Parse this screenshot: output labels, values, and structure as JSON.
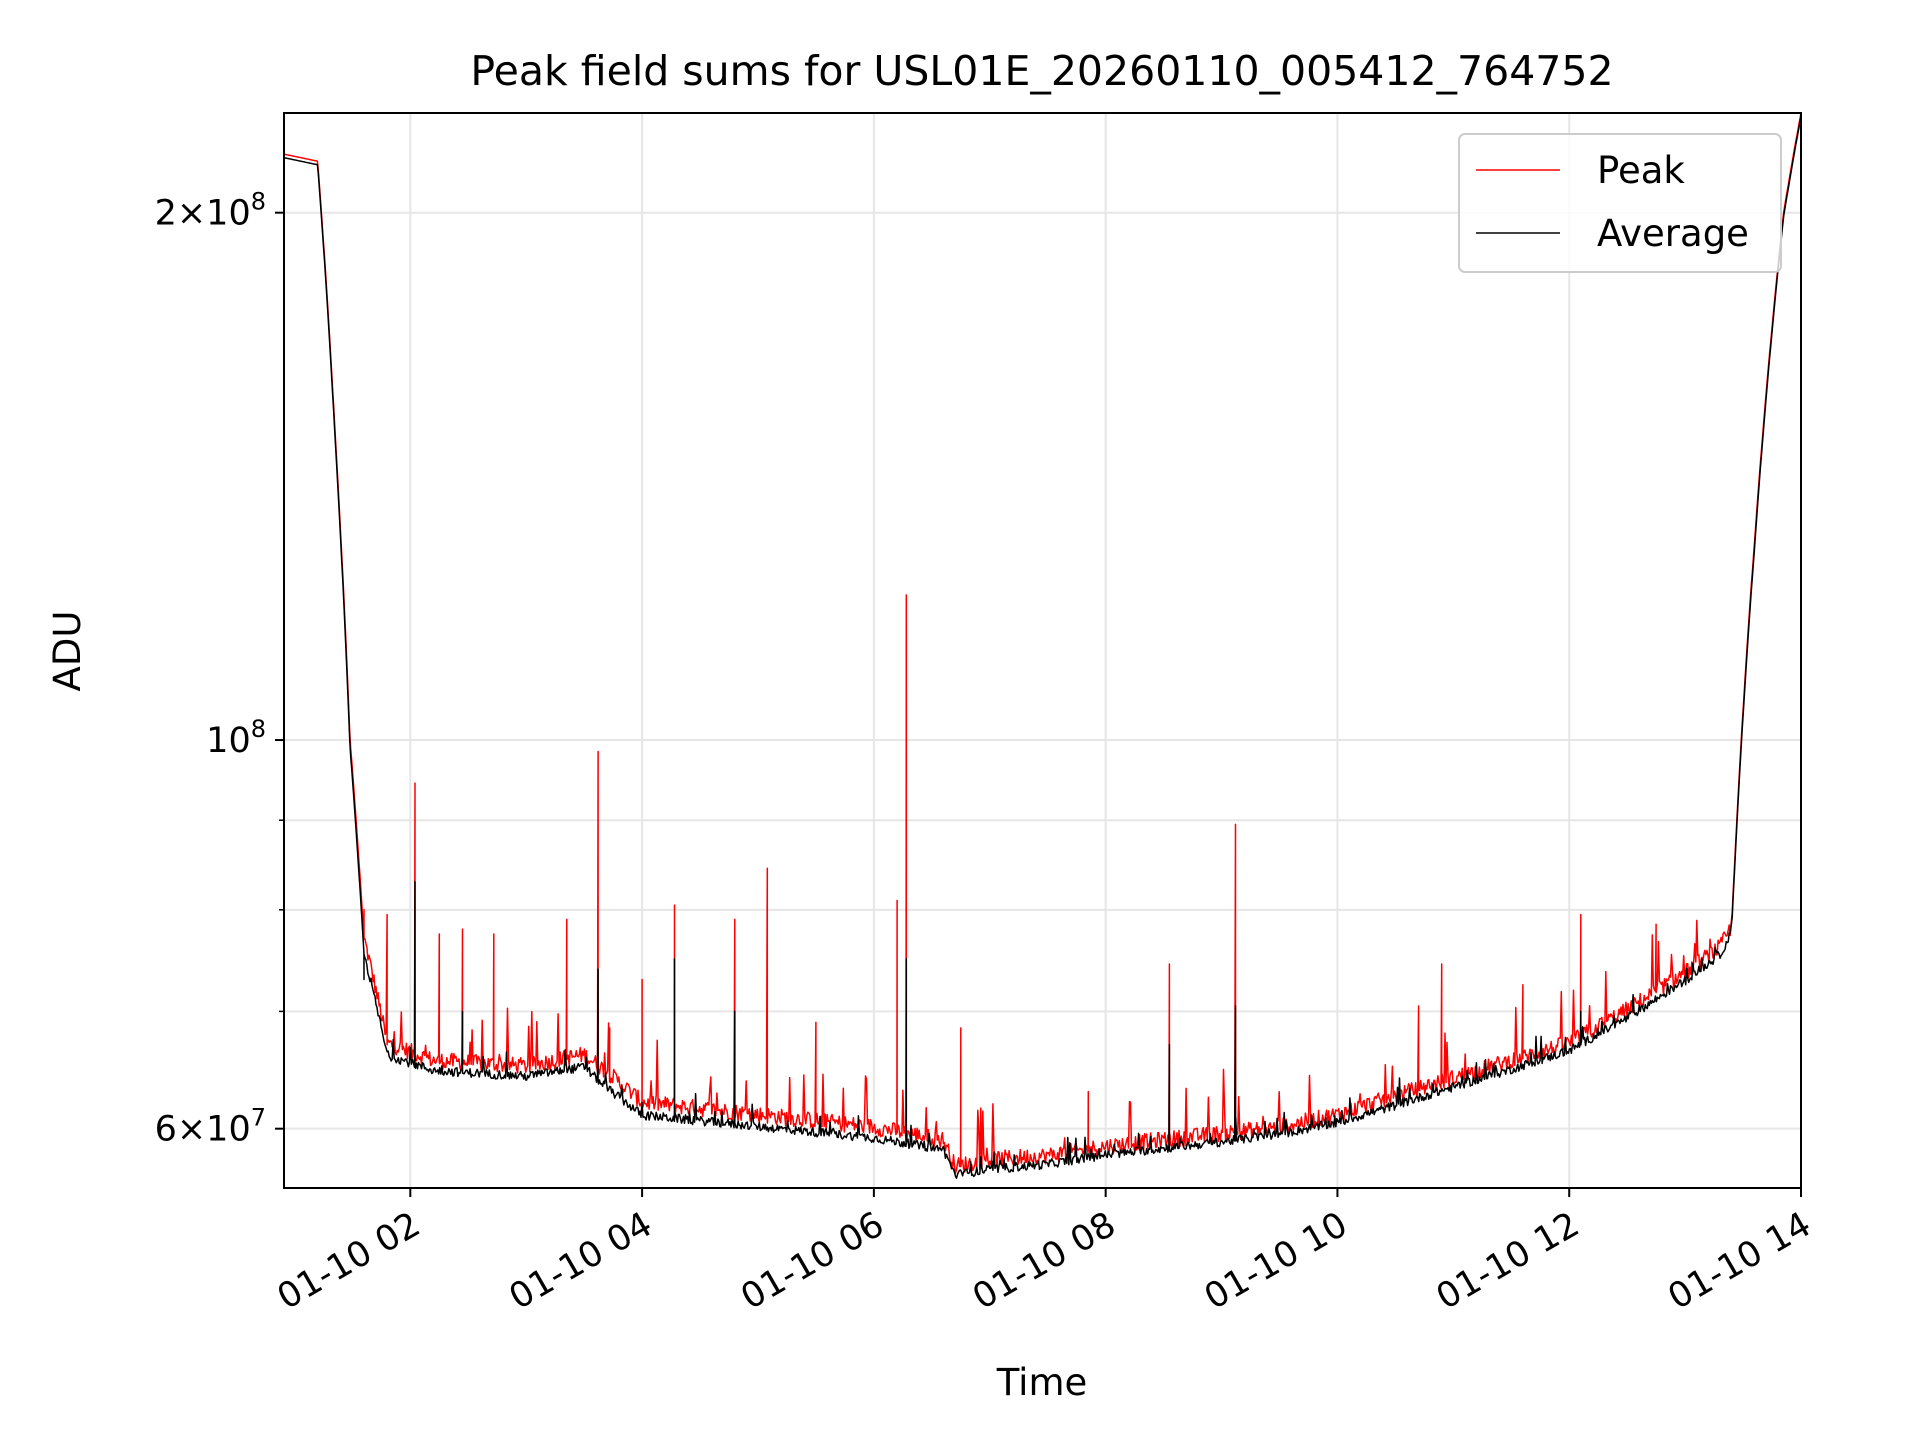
{
  "chart_data": {
    "type": "line",
    "title": "Peak field sums for USL01E_20260110_005412_764752",
    "xlabel": "Time",
    "ylabel": "ADU",
    "yscale": "log",
    "xlim_hours": [
      0.91,
      14.0
    ],
    "ylim": [
      55500000,
      228000000
    ],
    "grid": true,
    "legend_position": "top-right",
    "x_ticks": [
      {
        "h": 2,
        "label": "01-10 02"
      },
      {
        "h": 4,
        "label": "01-10 04"
      },
      {
        "h": 6,
        "label": "01-10 06"
      },
      {
        "h": 8,
        "label": "01-10 08"
      },
      {
        "h": 10,
        "label": "01-10 10"
      },
      {
        "h": 12,
        "label": "01-10 12"
      },
      {
        "h": 14,
        "label": "01-10 14"
      }
    ],
    "y_major_ticks": [
      {
        "v": 60000000,
        "mant": "6×10",
        "exp": "7"
      },
      {
        "v": 100000000,
        "mant": "10",
        "exp": "8"
      },
      {
        "v": 200000000,
        "mant": "2×10",
        "exp": "8"
      }
    ],
    "y_minor_ticks": [
      70000000,
      80000000,
      90000000
    ],
    "series": [
      {
        "name": "Peak",
        "color": "#ff0000",
        "baseline": [
          [
            0.91,
            216000000
          ],
          [
            1.2,
            214000000
          ],
          [
            1.35,
            150000000
          ],
          [
            1.48,
            100000000
          ],
          [
            1.6,
            77000000
          ],
          [
            1.8,
            67000000
          ],
          [
            2.2,
            65500000
          ],
          [
            3.0,
            65000000
          ],
          [
            3.5,
            66000000
          ],
          [
            3.7,
            64500000
          ],
          [
            4.0,
            62000000
          ],
          [
            5.0,
            61000000
          ],
          [
            6.0,
            60000000
          ],
          [
            6.6,
            59000000
          ],
          [
            6.7,
            57000000
          ],
          [
            7.0,
            57500000
          ],
          [
            7.5,
            57800000
          ],
          [
            8.0,
            58500000
          ],
          [
            8.5,
            59000000
          ],
          [
            9.0,
            59500000
          ],
          [
            9.5,
            60000000
          ],
          [
            10.0,
            61000000
          ],
          [
            10.5,
            62500000
          ],
          [
            11.0,
            64000000
          ],
          [
            11.5,
            65500000
          ],
          [
            12.0,
            67000000
          ],
          [
            12.5,
            70000000
          ],
          [
            13.0,
            73500000
          ],
          [
            13.3,
            76000000
          ],
          [
            13.4,
            78000000
          ],
          [
            13.6,
            130000000
          ],
          [
            13.85,
            200000000
          ],
          [
            14.0,
            228000000
          ]
        ],
        "spikes": [
          [
            1.6,
            80000000
          ],
          [
            1.8,
            79500000
          ],
          [
            2.04,
            94500000
          ],
          [
            2.25,
            77500000
          ],
          [
            2.45,
            78000000
          ],
          [
            2.72,
            77500000
          ],
          [
            3.35,
            79000000
          ],
          [
            3.62,
            98500000
          ],
          [
            3.62,
            84000000
          ],
          [
            3.72,
            68500000
          ],
          [
            4.0,
            73000000
          ],
          [
            4.28,
            80500000
          ],
          [
            4.8,
            79000000
          ],
          [
            5.08,
            84500000
          ],
          [
            5.5,
            69000000
          ],
          [
            6.2,
            81000000
          ],
          [
            6.28,
            121000000
          ],
          [
            6.28,
            82000000
          ],
          [
            6.75,
            68500000
          ],
          [
            7.85,
            63000000
          ],
          [
            8.55,
            74500000
          ],
          [
            9.12,
            89500000
          ],
          [
            10.7,
            70500000
          ],
          [
            10.9,
            74500000
          ],
          [
            11.6,
            72500000
          ],
          [
            12.1,
            79500000
          ],
          [
            12.75,
            78500000
          ]
        ]
      },
      {
        "name": "Average",
        "color": "#000000",
        "baseline": [
          [
            0.91,
            215000000
          ],
          [
            1.2,
            213000000
          ],
          [
            1.35,
            149000000
          ],
          [
            1.48,
            99000000
          ],
          [
            1.6,
            75500000
          ],
          [
            1.8,
            66000000
          ],
          [
            2.2,
            64700000
          ],
          [
            3.0,
            64200000
          ],
          [
            3.5,
            65000000
          ],
          [
            3.7,
            63200000
          ],
          [
            4.0,
            61000000
          ],
          [
            5.0,
            60100000
          ],
          [
            6.0,
            59200000
          ],
          [
            6.6,
            58300000
          ],
          [
            6.7,
            56400000
          ],
          [
            7.0,
            56800000
          ],
          [
            7.5,
            57200000
          ],
          [
            8.0,
            57900000
          ],
          [
            8.5,
            58400000
          ],
          [
            9.0,
            58900000
          ],
          [
            9.5,
            59500000
          ],
          [
            10.0,
            60400000
          ],
          [
            10.5,
            61800000
          ],
          [
            11.0,
            63300000
          ],
          [
            11.5,
            64800000
          ],
          [
            12.0,
            66400000
          ],
          [
            12.5,
            69300000
          ],
          [
            13.0,
            72800000
          ],
          [
            13.3,
            75300000
          ],
          [
            13.4,
            77500000
          ],
          [
            13.6,
            129000000
          ],
          [
            13.85,
            199000000
          ],
          [
            14.0,
            227000000
          ]
        ],
        "spikes": [
          [
            1.6,
            73000000
          ],
          [
            2.04,
            83000000
          ],
          [
            2.45,
            70000000
          ],
          [
            3.62,
            74000000
          ],
          [
            4.28,
            75000000
          ],
          [
            4.8,
            70000000
          ],
          [
            6.28,
            75000000
          ],
          [
            8.55,
            67000000
          ],
          [
            9.12,
            70500000
          ],
          [
            12.1,
            70000000
          ]
        ]
      }
    ]
  }
}
